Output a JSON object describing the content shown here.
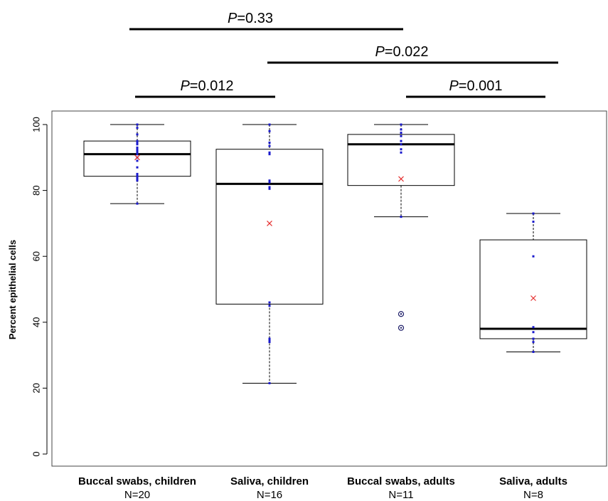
{
  "chart_data": {
    "type": "box",
    "ylabel": "Percent epithelial cells",
    "ylim": [
      0,
      100
    ],
    "yticks": [
      0,
      20,
      40,
      60,
      80,
      100
    ],
    "groups": [
      {
        "category": "Buccal swabs, children",
        "n_label": "N=20",
        "whisker_low": 76,
        "q1": 84.3,
        "median": 91,
        "q3": 95,
        "whisker_high": 100,
        "mean": 90,
        "outliers": [],
        "points": [
          100,
          99,
          97,
          95,
          94.5,
          94,
          93,
          92.5,
          92,
          91.5,
          91,
          90,
          89,
          87,
          85,
          84.5,
          84,
          83.5,
          83,
          76
        ]
      },
      {
        "category": "Saliva, children",
        "n_label": "N=16",
        "whisker_low": 21.5,
        "q1": 45.5,
        "median": 82,
        "q3": 92.5,
        "whisker_high": 100,
        "mean": 70,
        "outliers": [],
        "points": [
          100,
          98,
          94.5,
          93.5,
          91.5,
          91,
          83,
          82.5,
          81,
          80.5,
          46,
          45,
          35,
          34.5,
          34,
          21.5
        ]
      },
      {
        "category": "Buccal swabs, adults",
        "n_label": "N=11",
        "whisker_low": 72,
        "q1": 81.5,
        "median": 94,
        "q3": 97,
        "whisker_high": 100,
        "mean": 83.5,
        "outliers": [
          42.5,
          38.3
        ],
        "points": [
          100,
          98.5,
          97.5,
          96.5,
          95,
          94,
          92.5,
          91.5,
          72
        ]
      },
      {
        "category": "Saliva, adults",
        "n_label": "N=8",
        "whisker_low": 31,
        "q1": 35,
        "median": 38,
        "q3": 65,
        "whisker_high": 73,
        "mean": 47.3,
        "outliers": [],
        "points": [
          73,
          70.5,
          60,
          38.5,
          37,
          35,
          34,
          31
        ]
      }
    ],
    "comparisons": [
      {
        "from": 0,
        "to": 2,
        "p_symbol": "P",
        "p_value": "=0.33"
      },
      {
        "from": 1,
        "to": 3,
        "p_symbol": "P",
        "p_value": "=0.022"
      },
      {
        "from": 0,
        "to": 1,
        "p_symbol": "P",
        "p_value": "=0.012"
      },
      {
        "from": 2,
        "to": 3,
        "p_symbol": "P",
        "p_value": "=0.001"
      }
    ],
    "colors": {
      "box": "#000000",
      "points": "#1a1acc",
      "mean_marker": "#e53030",
      "outlier": "#1a1a66"
    },
    "grid": false,
    "legend": "none"
  }
}
